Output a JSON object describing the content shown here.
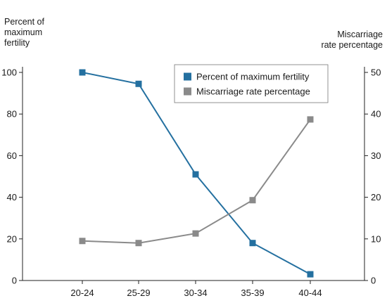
{
  "chart_data": {
    "type": "line",
    "categories": [
      "20-24",
      "25-29",
      "30-34",
      "35-39",
      "40-44"
    ],
    "y_left": {
      "label_lines": [
        "Percent of",
        "maximum",
        "fertility"
      ],
      "range": [
        0,
        100
      ],
      "ticks": [
        0,
        20,
        40,
        60,
        80,
        100
      ]
    },
    "y_right": {
      "label_lines": [
        "Miscarriage",
        "rate percentage"
      ],
      "range": [
        0,
        50
      ],
      "ticks": [
        0,
        10,
        20,
        30,
        40,
        50
      ]
    },
    "series": [
      {
        "name": "Percent of maximum fertility",
        "axis": "left",
        "color": "#2470a0",
        "marker": "square",
        "values": [
          100,
          94.5,
          51,
          18,
          3
        ]
      },
      {
        "name": "Miscarriage rate percentage",
        "axis": "right",
        "color": "#8a8a8a",
        "marker": "square",
        "values": [
          9.5,
          9,
          11.3,
          19.3,
          38.7
        ]
      }
    ],
    "legend_position": "top-right",
    "grid": false
  }
}
